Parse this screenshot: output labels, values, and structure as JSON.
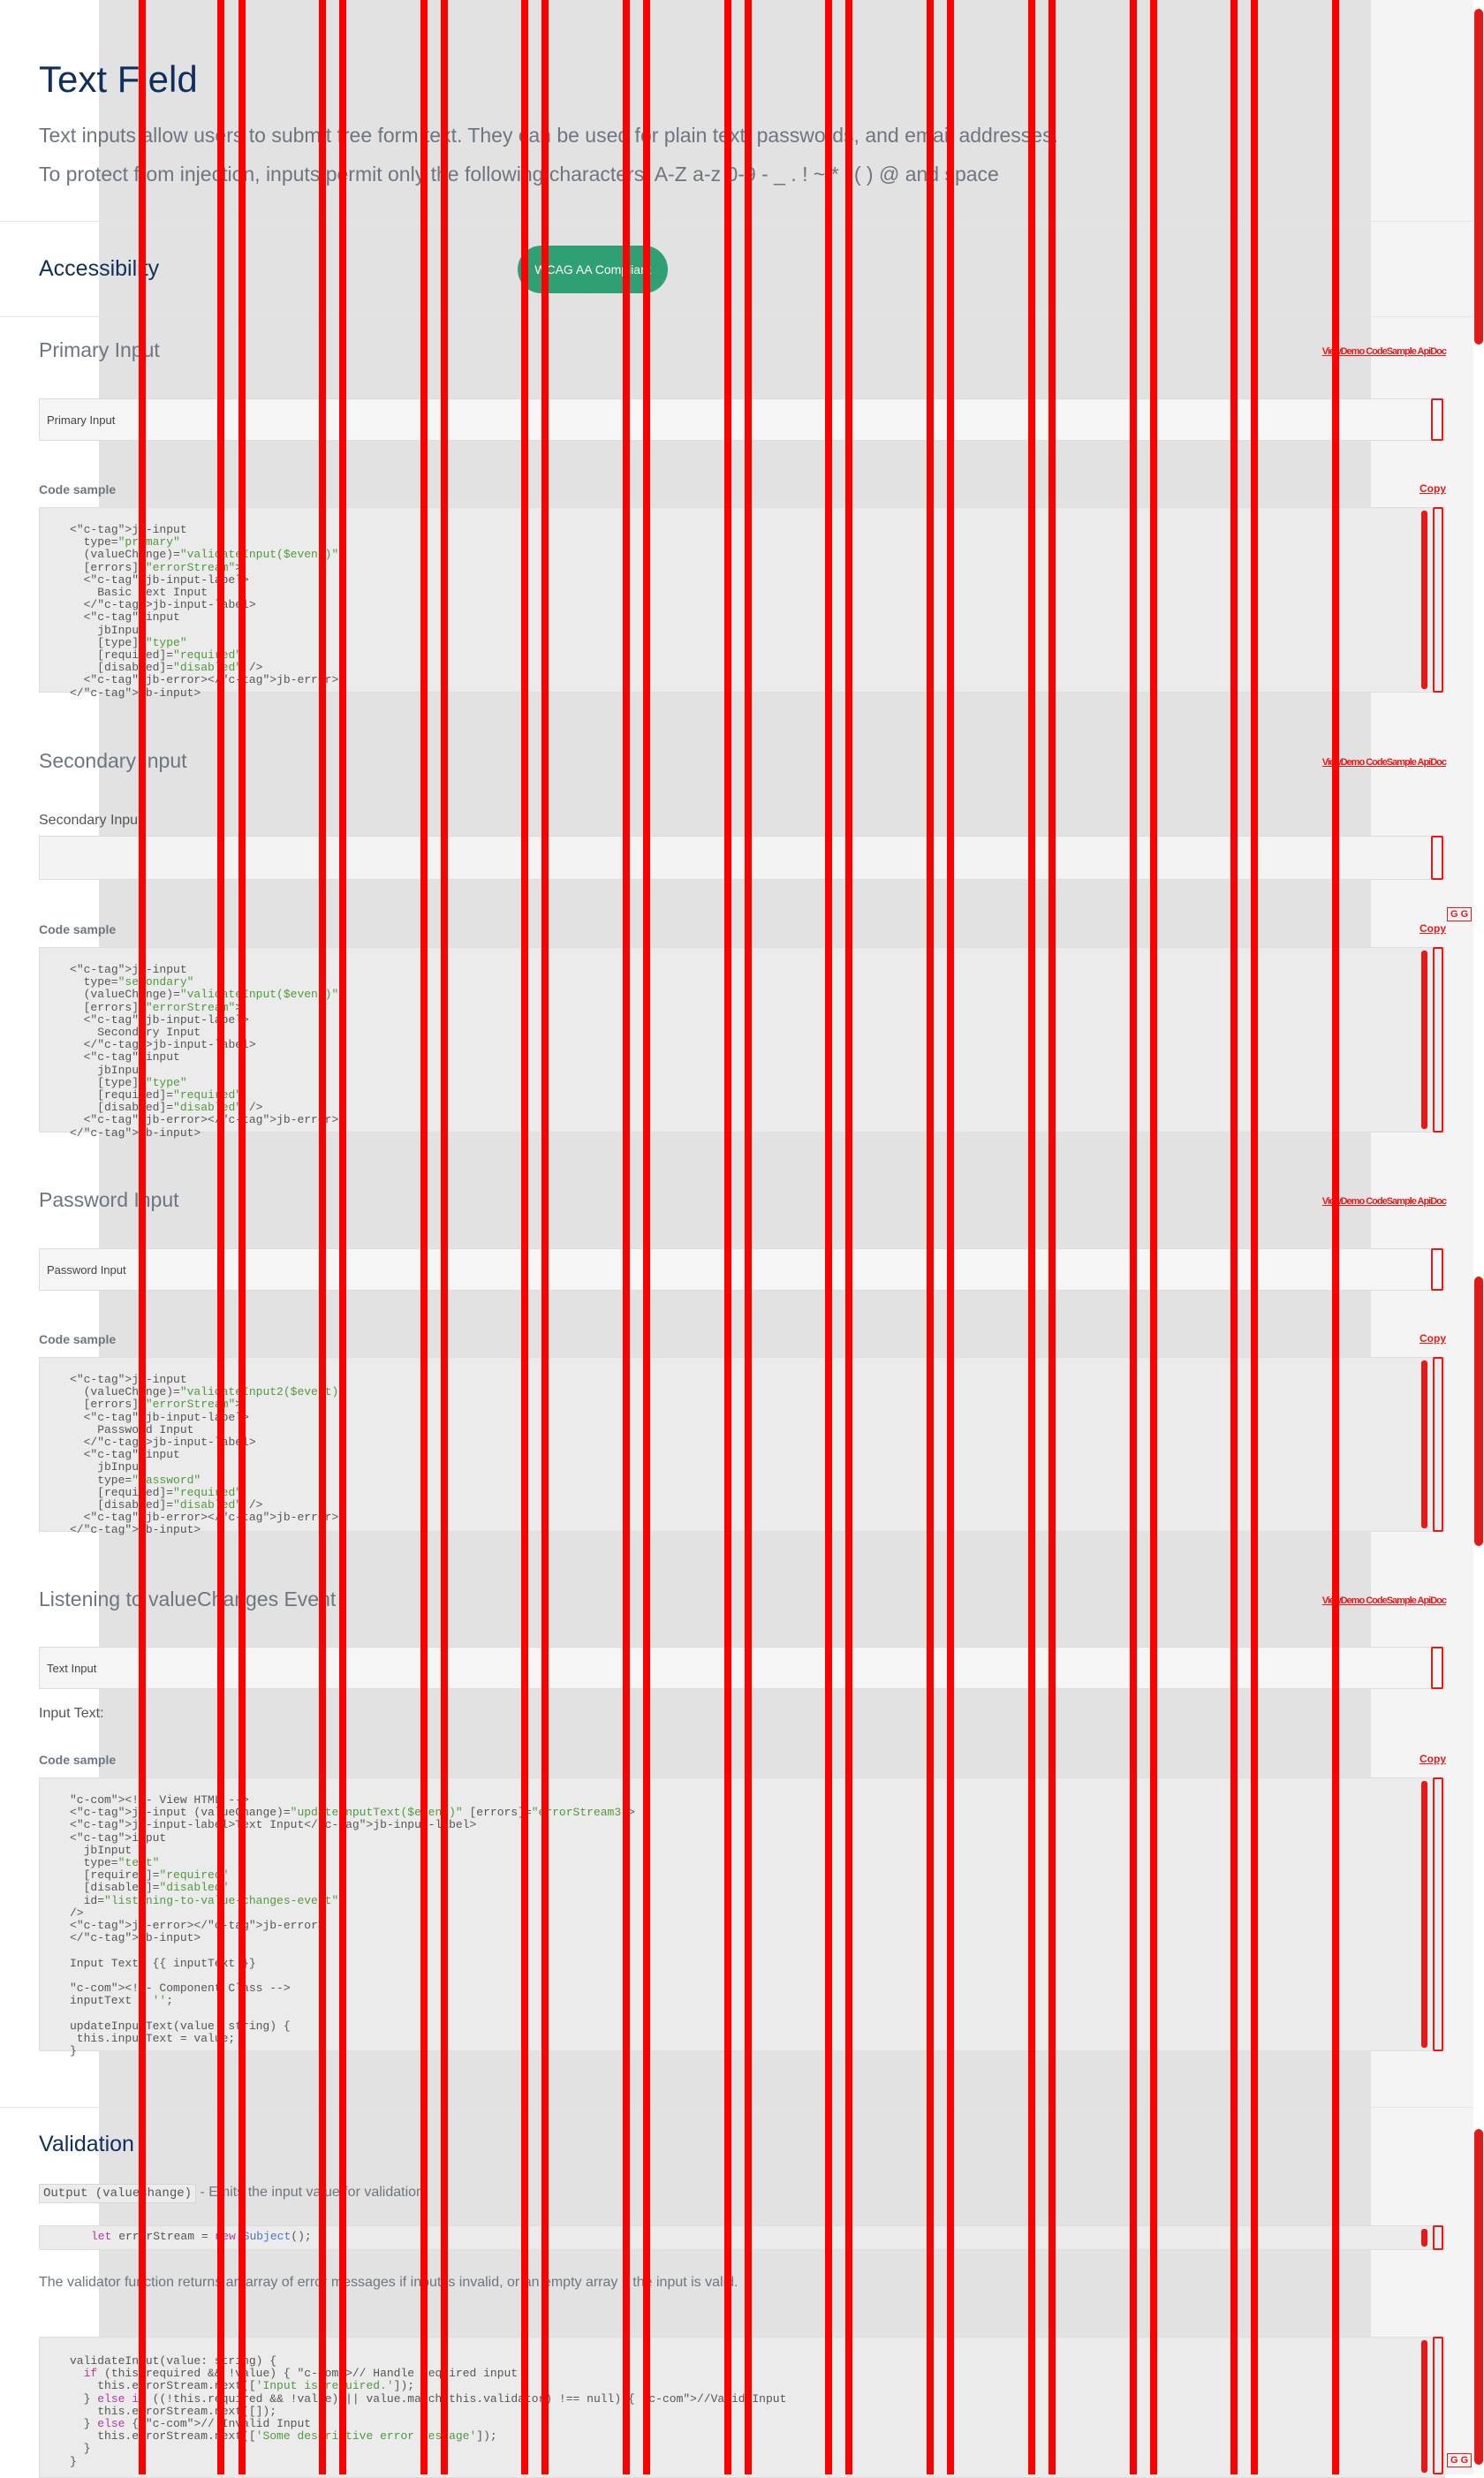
{
  "header": {
    "title": "Text Field",
    "intro_1": "Text inputs allow users to submit free form text. They can be used for plain text, passwords, and email addresses.",
    "intro_2": "To protect from injection, inputs permit only the following characters: A-Z a-z 0-9 - _ . ! ~ * ' ( ) @ and space"
  },
  "accessibility": {
    "title": "Accessibility",
    "badge": "WCAG AA Compliant"
  },
  "tabs_label": "ViewDemo CodeSample ApiDoc",
  "copy_label": "Copy",
  "code_sample_label": "Code sample",
  "primary": {
    "title": "Primary Input",
    "input_placeholder": "Primary Input",
    "code": "<jb-input\n  type=\"primary\"\n  (valueChange)=\"validateInput($event)\"\n  [errors]=\"errorStream\">\n  <jb-input-label>\n    Basic Text Input\n  </jb-input-label>\n  <input\n    jbInput\n    [type]=\"type\"\n    [required]=\"required\"\n    [disabled]=\"disabled\" />\n  <jb-error></jb-error>\n</jb-input>"
  },
  "secondary": {
    "title": "Secondary Input",
    "field_label": "Secondary Input",
    "code": "<jb-input\n  type=\"secondary\"\n  (valueChange)=\"validateInput($event)\"\n  [errors]=\"errorStream\">\n  <jb-input-label>\n    Secondary Input\n  </jb-input-label>\n  <input\n    jbInput\n    [type]=\"type\"\n    [required]=\"required\"\n    [disabled]=\"disabled\" />\n  <jb-error></jb-error>\n</jb-input>"
  },
  "password": {
    "title": "Password Input",
    "input_placeholder": "Password Input",
    "code": "<jb-input\n  (valueChange)=\"validateInput2($event)\"\n  [errors]=\"errorStream\">\n  <jb-input-label>\n    Password Input\n  </jb-input-label>\n  <input\n    jbInput\n    type=\"password\"\n    [required]=\"required\"\n    [disabled]=\"disabled\" />\n  <jb-error></jb-error>\n</jb-input>"
  },
  "listening": {
    "title": "Listening to valueChanges Event",
    "input_placeholder": "Text Input",
    "input_text_label": "Input Text:",
    "code": "<!-- View HTML -->\n<jb-input (valueChange)=\"updateInputText($event)\" [errors]=\"errorStream3\">\n<jb-input-label>Text Input</jb-input-label>\n<input\n  jbInput\n  type=\"text\"\n  [required]=\"required\"\n  [disabled]=\"disabled\"\n  id=\"listening-to-value-changes-event\"\n/>\n<jb-error></jb-error>\n</jb-input>\n\nInput Text: {{ inputText }}\n\n<!-- Component Class -->\ninputText = '';\n\nupdateInputText(value: string) {\n this.inputText = value;\n}"
  },
  "validation": {
    "title": "Validation",
    "output_code": "Output (valueChange)",
    "output_desc": " - Emits the input value for validation.",
    "stream_code": "let errorStream = new Subject();",
    "desc": "The validator function returns an array of error messages if input is invalid, or an empty array if the input is valid.",
    "code": "validateInput(value: string) {\n  if (this.required && !value) { // Handle required input\n    this.errorStream.next(['Input is required.']);\n  } else if ((!this.required && !value) || value.match(this.validator) !== null) { //Valid Input\n    this.errorStream.next([]);\n  } else { // Invalid Input\n    this.errorStream.next(['Some descriptive error message']);\n  }\n}"
  },
  "gg_label": "G G",
  "colors": {
    "accent": "#2f9f74",
    "title": "#0f2f5c",
    "overlay": "#e61919"
  }
}
